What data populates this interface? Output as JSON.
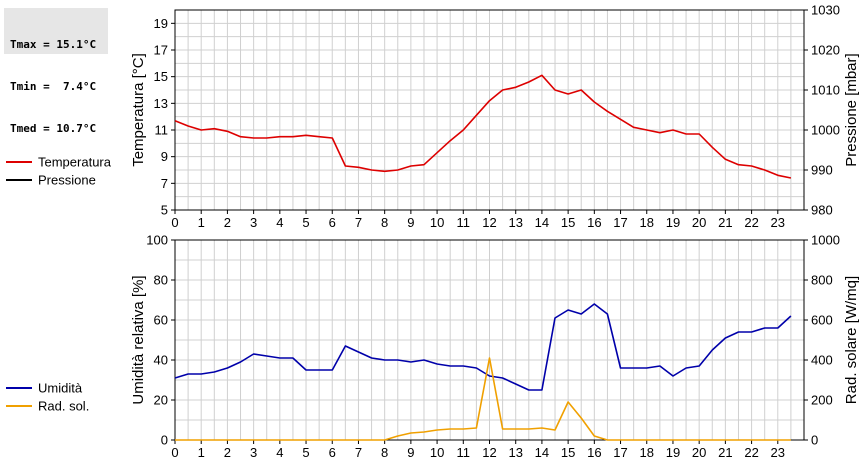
{
  "stats": {
    "lines": [
      "Tmax = 15.1°C",
      "Tmin =  7.4°C",
      "Tmed = 10.7°C"
    ]
  },
  "colors": {
    "temperature": "#dd0000",
    "pressure": "#000000",
    "humidity": "#0000aa",
    "radiation": "#f0a000",
    "grid": "#d0d0d0"
  },
  "chart_data": [
    {
      "type": "line",
      "xlabel": "",
      "ylabel": "Temperatura [°C]",
      "y2label": "Pressione [mbar]",
      "xlim": [
        0,
        24
      ],
      "ylim": [
        5,
        20
      ],
      "y2lim": [
        980,
        1030
      ],
      "xticks": [
        0,
        1,
        2,
        3,
        4,
        5,
        6,
        7,
        8,
        9,
        10,
        11,
        12,
        13,
        14,
        15,
        16,
        17,
        18,
        19,
        20,
        21,
        22,
        23
      ],
      "yticks": [
        5,
        7,
        9,
        11,
        13,
        15,
        17,
        19
      ],
      "y2ticks": [
        980,
        990,
        1000,
        1010,
        1020,
        1030
      ],
      "legend": [
        {
          "name": "Temperatura",
          "color": "#dd0000"
        },
        {
          "name": "Pressione",
          "color": "#000000"
        }
      ],
      "series": [
        {
          "name": "Temperatura",
          "x": [
            0,
            0.5,
            1,
            1.5,
            2,
            2.5,
            3,
            3.5,
            4,
            4.5,
            5,
            5.5,
            6,
            6.5,
            7,
            7.5,
            8,
            8.5,
            9,
            9.5,
            10,
            10.5,
            11,
            11.5,
            12,
            12.5,
            13,
            13.5,
            14,
            14.5,
            15,
            15.5,
            16,
            16.5,
            17,
            17.5,
            18,
            18.5,
            19,
            19.5,
            20,
            20.5,
            21,
            21.5,
            22,
            22.5,
            23,
            23.5
          ],
          "values": [
            11.7,
            11.3,
            11.0,
            11.1,
            10.9,
            10.5,
            10.4,
            10.4,
            10.5,
            10.5,
            10.6,
            10.5,
            10.4,
            8.3,
            8.2,
            8.0,
            7.9,
            8.0,
            8.3,
            8.4,
            9.3,
            10.2,
            11.0,
            12.1,
            13.2,
            14.0,
            14.2,
            14.6,
            15.1,
            14.0,
            13.7,
            14.0,
            13.1,
            12.4,
            11.8,
            11.2,
            11.0,
            10.8,
            11.0,
            10.7,
            10.7,
            9.7,
            8.8,
            8.4,
            8.3,
            8.0,
            7.6,
            7.4
          ]
        }
      ]
    },
    {
      "type": "line",
      "xlabel": "",
      "ylabel": "Umidità relativa [%]",
      "y2label": "Rad. solare [W/mq]",
      "xlim": [
        0,
        24
      ],
      "ylim": [
        0,
        100
      ],
      "y2lim": [
        0,
        1000
      ],
      "xticks": [
        0,
        1,
        2,
        3,
        4,
        5,
        6,
        7,
        8,
        9,
        10,
        11,
        12,
        13,
        14,
        15,
        16,
        17,
        18,
        19,
        20,
        21,
        22,
        23
      ],
      "yticks": [
        0,
        20,
        40,
        60,
        80,
        100
      ],
      "y2ticks": [
        0,
        200,
        400,
        600,
        800,
        1000
      ],
      "legend": [
        {
          "name": "Umidità",
          "color": "#0000aa"
        },
        {
          "name": "Rad. sol.",
          "color": "#f0a000"
        }
      ],
      "series": [
        {
          "name": "Umidità",
          "x": [
            0,
            0.5,
            1,
            1.5,
            2,
            2.5,
            3,
            3.5,
            4,
            4.5,
            5,
            5.5,
            6,
            6.5,
            7,
            7.5,
            8,
            8.5,
            9,
            9.5,
            10,
            10.5,
            11,
            11.5,
            12,
            12.5,
            13,
            13.5,
            14,
            14.5,
            15,
            15.5,
            16,
            16.5,
            17,
            17.5,
            18,
            18.5,
            19,
            19.5,
            20,
            20.5,
            21,
            21.5,
            22,
            22.5,
            23,
            23.5
          ],
          "values": [
            31,
            33,
            33,
            34,
            36,
            39,
            43,
            42,
            41,
            41,
            35,
            35,
            35,
            47,
            44,
            41,
            40,
            40,
            39,
            40,
            38,
            37,
            37,
            36,
            32,
            31,
            28,
            25,
            25,
            61,
            65,
            63,
            68,
            63,
            36,
            36,
            36,
            37,
            32,
            36,
            37,
            45,
            51,
            54,
            54,
            56,
            56,
            62
          ]
        },
        {
          "name": "Rad. sol.",
          "axis": "y2",
          "x": [
            0,
            1,
            2,
            3,
            4,
            5,
            6,
            7,
            8,
            8.5,
            9,
            9.5,
            10,
            10.5,
            11,
            11.5,
            12,
            12.5,
            13,
            13.5,
            14,
            14.5,
            15,
            15.5,
            16,
            16.5,
            17,
            18,
            19,
            20,
            21,
            22,
            23,
            23.5
          ],
          "values": [
            0,
            0,
            0,
            0,
            0,
            0,
            0,
            0,
            0,
            20,
            35,
            40,
            50,
            55,
            55,
            60,
            410,
            55,
            55,
            55,
            60,
            50,
            190,
            110,
            20,
            0,
            0,
            0,
            0,
            0,
            0,
            0,
            0,
            0
          ]
        }
      ]
    }
  ]
}
